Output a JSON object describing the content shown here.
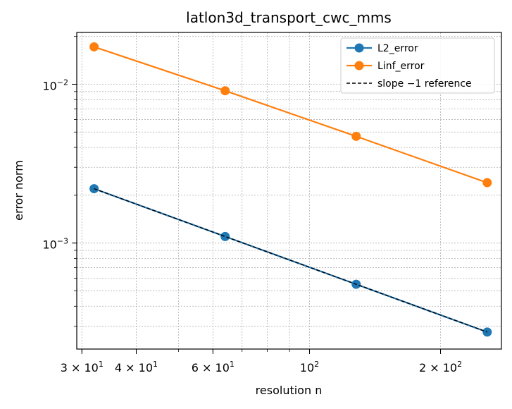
{
  "chart_data": {
    "type": "line",
    "title": "latlon3d_transport_cwc_mms",
    "xlabel": "resolution n",
    "ylabel": "error norm",
    "xscale": "log",
    "yscale": "log",
    "xlim": [
      29.2,
      276
    ],
    "ylim": [
      0.000215,
      0.0212
    ],
    "grid": true,
    "legend_position": "top-right",
    "x": [
      32,
      64,
      128,
      256
    ],
    "series": [
      {
        "name": "L2_error",
        "color": "#1f77b4",
        "marker": "circle",
        "style": "solid",
        "values": [
          0.0022,
          0.0011,
          0.00055,
          0.000275
        ]
      },
      {
        "name": "Linf_error",
        "color": "#ff7f0e",
        "marker": "circle",
        "style": "solid",
        "values": [
          0.0172,
          0.0091,
          0.0047,
          0.0024
        ]
      },
      {
        "name": "slope −1 reference",
        "color": "#000000",
        "marker": "none",
        "style": "dashed",
        "values": [
          0.0022,
          0.0011,
          0.00055,
          0.000275
        ]
      }
    ],
    "x_ticks": [
      {
        "value": 30,
        "base": "3 × 10",
        "exp": "1"
      },
      {
        "value": 40,
        "base": "4 × 10",
        "exp": "1"
      },
      {
        "value": 60,
        "base": "6 × 10",
        "exp": "1"
      },
      {
        "value": 100,
        "base": "10",
        "exp": "2"
      },
      {
        "value": 200,
        "base": "2 × 10",
        "exp": "2"
      }
    ],
    "y_ticks": [
      {
        "value": 0.001,
        "base": "10",
        "exp": "−3"
      },
      {
        "value": 0.01,
        "base": "10",
        "exp": "−2"
      }
    ]
  }
}
